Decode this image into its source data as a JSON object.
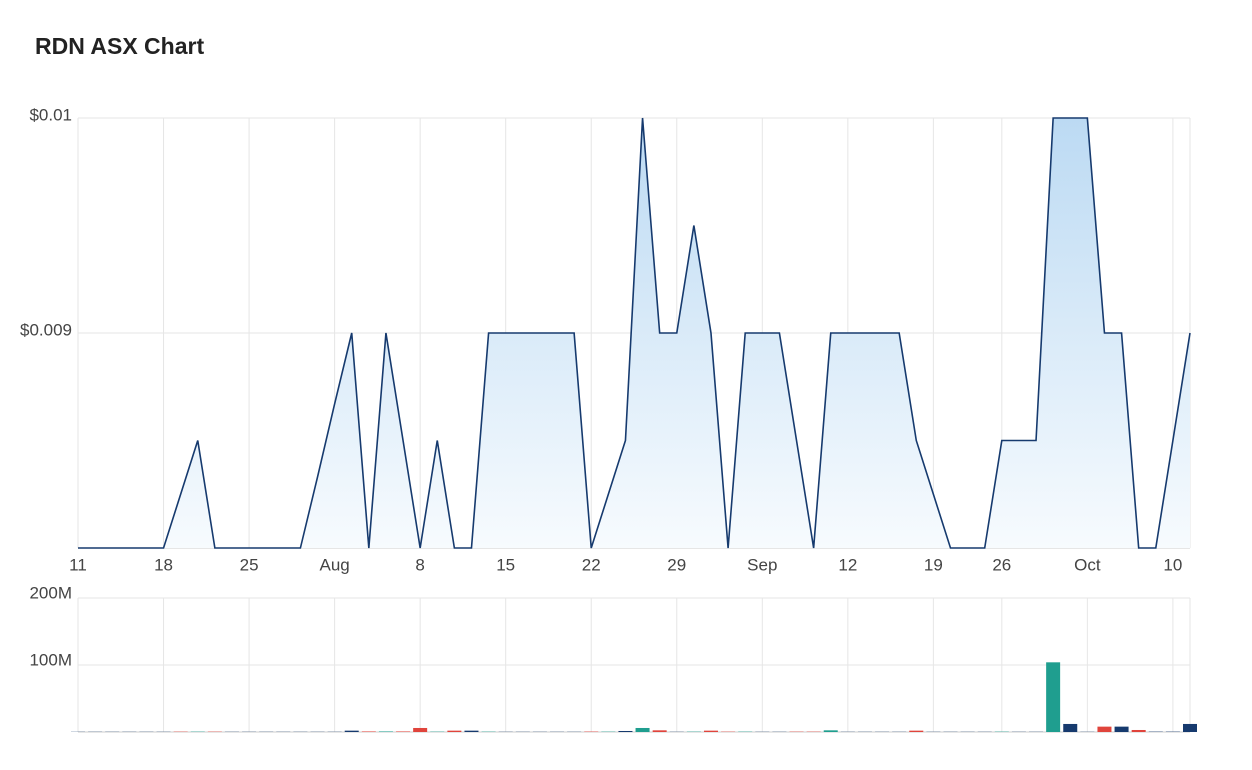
{
  "chart_data": [
    {
      "type": "area",
      "title": "RDN ASX Chart",
      "color": "#163a6e",
      "categories": [
        "11",
        null,
        null,
        null,
        null,
        "18",
        null,
        null,
        null,
        null,
        "25",
        null,
        null,
        null,
        null,
        "Aug",
        null,
        null,
        null,
        null,
        "8",
        null,
        null,
        null,
        null,
        "15",
        null,
        null,
        null,
        null,
        "22",
        null,
        null,
        null,
        null,
        "29",
        null,
        null,
        null,
        null,
        "Sep",
        null,
        null,
        null,
        null,
        "12",
        null,
        null,
        null,
        null,
        "19",
        null,
        null,
        null,
        "26",
        null,
        null,
        null,
        null,
        "Oct",
        null,
        null,
        null,
        null,
        "10",
        null
      ],
      "values": [
        0.008,
        0.008,
        0.008,
        0.008,
        0.008,
        0.008,
        0.00825,
        0.0085,
        0.008,
        0.008,
        0.008,
        0.008,
        0.008,
        0.008,
        0.00833,
        0.00867,
        0.009,
        0.008,
        0.009,
        0.0085,
        0.008,
        0.0085,
        0.008,
        0.008,
        0.009,
        0.009,
        0.009,
        0.009,
        0.009,
        0.009,
        0.008,
        0.00825,
        0.0085,
        0.01,
        0.009,
        0.009,
        0.0095,
        0.009,
        0.008,
        0.009,
        0.009,
        0.009,
        0.0085,
        0.008,
        0.009,
        0.009,
        0.009,
        0.009,
        0.009,
        0.0085,
        0.00825,
        0.008,
        0.008,
        0.008,
        0.0085,
        0.0085,
        0.0085,
        0.01,
        0.01,
        0.01,
        0.009,
        0.009,
        0.008,
        0.008,
        0.0085,
        0.009
      ],
      "ylim": [
        0.008,
        0.01
      ],
      "yticks": [
        {
          "value": 0.01,
          "label": "$0.01"
        },
        {
          "value": 0.009,
          "label": "$0.009"
        }
      ],
      "grid": true
    },
    {
      "type": "bar",
      "values": [
        300000,
        300000,
        300000,
        300000,
        300000,
        300000,
        500000,
        500000,
        500000,
        300000,
        300000,
        300000,
        300000,
        300000,
        300000,
        300000,
        2000000,
        800000,
        800000,
        800000,
        6000000,
        500000,
        2000000,
        2000000,
        500000,
        300000,
        300000,
        300000,
        300000,
        300000,
        600000,
        500000,
        1500000,
        6000000,
        2500000,
        300000,
        500000,
        2000000,
        500000,
        500000,
        300000,
        300000,
        500000,
        500000,
        2500000,
        300000,
        300000,
        300000,
        300000,
        2000000,
        300000,
        300000,
        300000,
        300000,
        500000,
        300000,
        300000,
        104000000,
        12000000,
        300000,
        8000000,
        8000000,
        3000000,
        500000,
        500000,
        12000000
      ],
      "colors": [
        "#163a6e",
        "#163a6e",
        "#163a6e",
        "#163a6e",
        "#163a6e",
        "#163a6e",
        "#e0443c",
        "#1f9e8f",
        "#e0443c",
        "#163a6e",
        "#163a6e",
        "#163a6e",
        "#163a6e",
        "#163a6e",
        "#163a6e",
        "#163a6e",
        "#163a6e",
        "#e0443c",
        "#1f9e8f",
        "#e0443c",
        "#e0443c",
        "#1f9e8f",
        "#e0443c",
        "#163a6e",
        "#1f9e8f",
        "#163a6e",
        "#163a6e",
        "#163a6e",
        "#163a6e",
        "#163a6e",
        "#e0443c",
        "#1f9e8f",
        "#163a6e",
        "#1f9e8f",
        "#e0443c",
        "#163a6e",
        "#1f9e8f",
        "#e0443c",
        "#e0443c",
        "#1f9e8f",
        "#163a6e",
        "#163a6e",
        "#e0443c",
        "#e0443c",
        "#1f9e8f",
        "#163a6e",
        "#163a6e",
        "#163a6e",
        "#163a6e",
        "#e0443c",
        "#163a6e",
        "#163a6e",
        "#163a6e",
        "#163a6e",
        "#1f9e8f",
        "#163a6e",
        "#163a6e",
        "#1f9e8f",
        "#163a6e",
        "#163a6e",
        "#e0443c",
        "#163a6e",
        "#e0443c",
        "#163a6e",
        "#163a6e",
        "#163a6e"
      ],
      "ylim": [
        0,
        200000000
      ],
      "yticks": [
        {
          "value": 200000000,
          "label": "200M"
        },
        {
          "value": 100000000,
          "label": "100M"
        }
      ],
      "grid": true
    }
  ]
}
